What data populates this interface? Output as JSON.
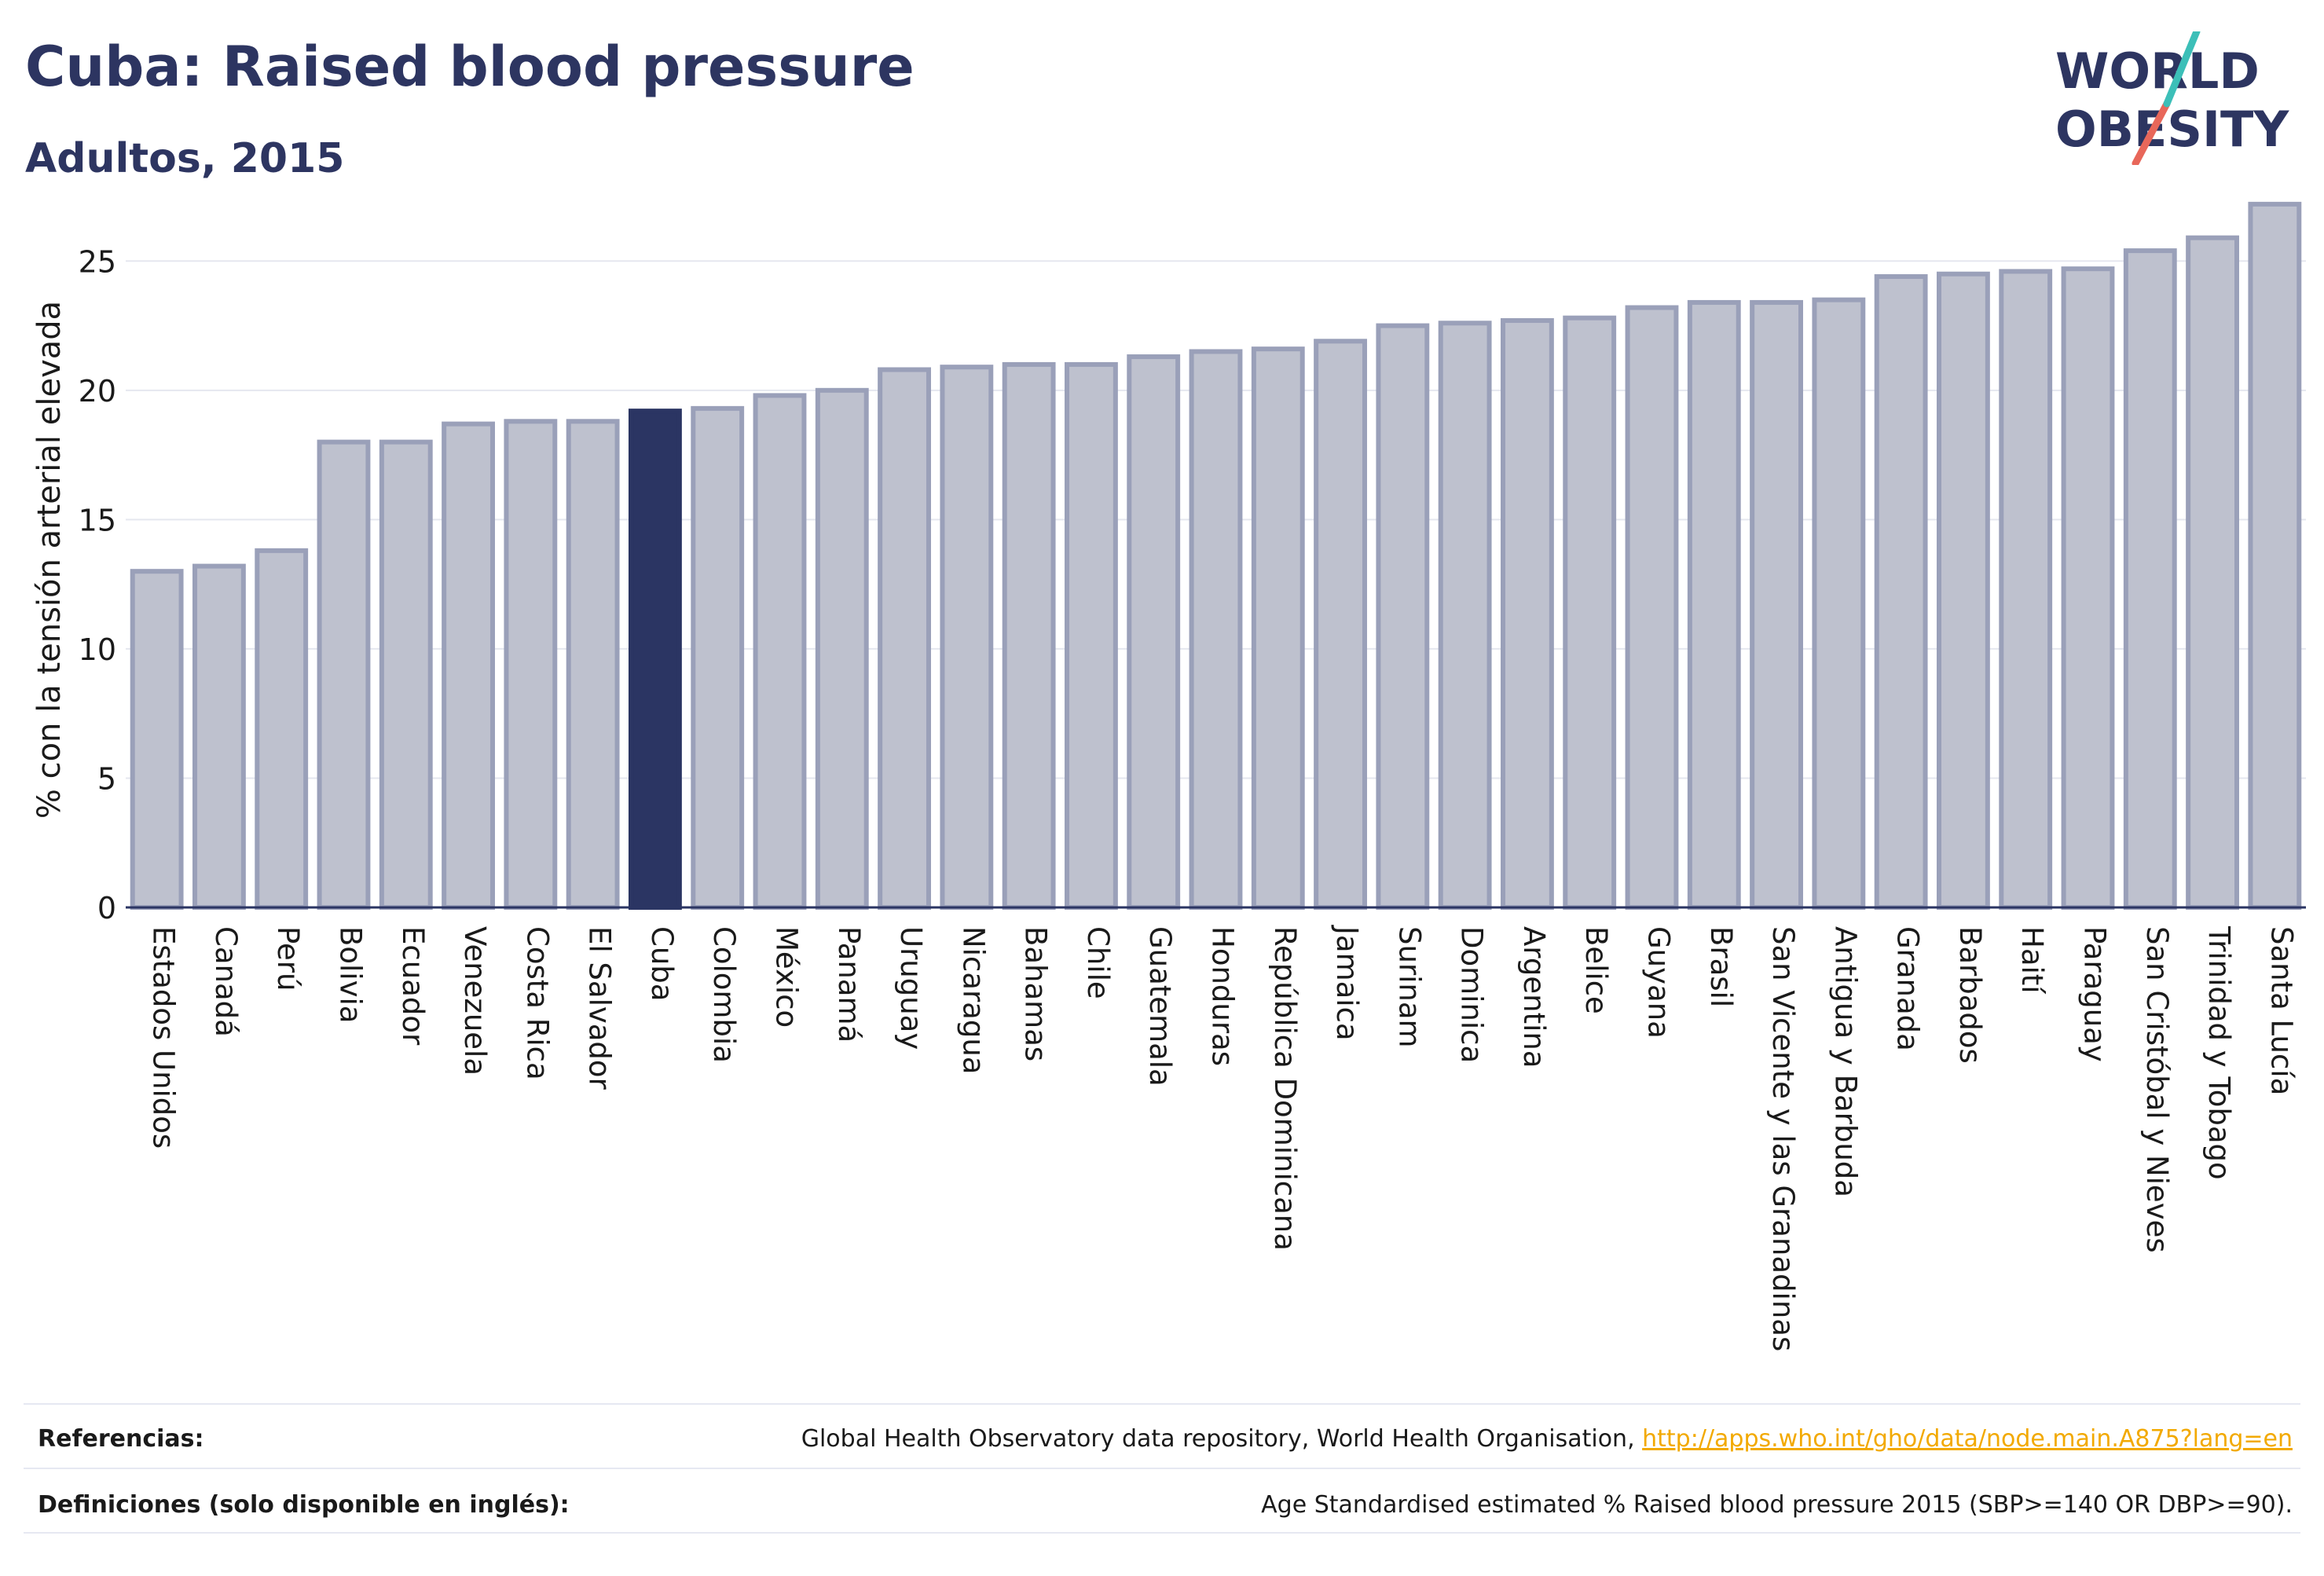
{
  "header": {
    "title": "Cuba: Raised blood pressure",
    "subtitle": "Adultos, 2015"
  },
  "logo": {
    "line1": "WORLD",
    "line2": "OBESITY"
  },
  "colors": {
    "highlight": "#2b3563",
    "bar": "#bec1ce",
    "bar_edge": "#9aa0b9",
    "grid": "#e5e7ef",
    "link": "#f2a900"
  },
  "chart_data": {
    "type": "bar",
    "ylabel": "% con la tensión arterial elevada",
    "xlabel": "",
    "ylim": [
      0,
      27.5
    ],
    "yticks": [
      0,
      5,
      10,
      15,
      20,
      25
    ],
    "grid": true,
    "highlight": "Cuba",
    "categories": [
      "Estados Unidos",
      "Canadá",
      "Perú",
      "Bolivia",
      "Ecuador",
      "Venezuela",
      "Costa Rica",
      "El Salvador",
      "Cuba",
      "Colombia",
      "México",
      "Panamá",
      "Uruguay",
      "Nicaragua",
      "Bahamas",
      "Chile",
      "Guatemala",
      "Honduras",
      "República Dominicana",
      "Jamaica",
      "Surinam",
      "Dominica",
      "Argentina",
      "Belice",
      "Guyana",
      "Brasil",
      "San Vicente y las Granadinas",
      "Antigua y Barbuda",
      "Granada",
      "Barbados",
      "Haití",
      "Paraguay",
      "San Cristóbal y Nieves",
      "Trinidad y Tobago",
      "Santa Lucía"
    ],
    "values": [
      13.0,
      13.2,
      13.8,
      18.0,
      18.0,
      18.7,
      18.8,
      18.8,
      19.2,
      19.3,
      19.8,
      20.0,
      20.8,
      20.9,
      21.0,
      21.0,
      21.3,
      21.5,
      21.6,
      21.9,
      22.5,
      22.6,
      22.7,
      22.8,
      23.2,
      23.4,
      23.4,
      23.5,
      24.4,
      24.5,
      24.6,
      24.7,
      25.4,
      25.9,
      27.2
    ]
  },
  "footer": {
    "references_label": "Referencias:",
    "references_text": "Global Health Observatory data repository, World Health Organisation, ",
    "references_link": "http://apps.who.int/gho/data/node.main.A875?lang=en",
    "definitions_label": "Definiciones (solo disponible en inglés):",
    "definitions_text": "Age Standardised estimated % Raised blood pressure 2015 (SBP>=140 OR DBP>=90)."
  }
}
